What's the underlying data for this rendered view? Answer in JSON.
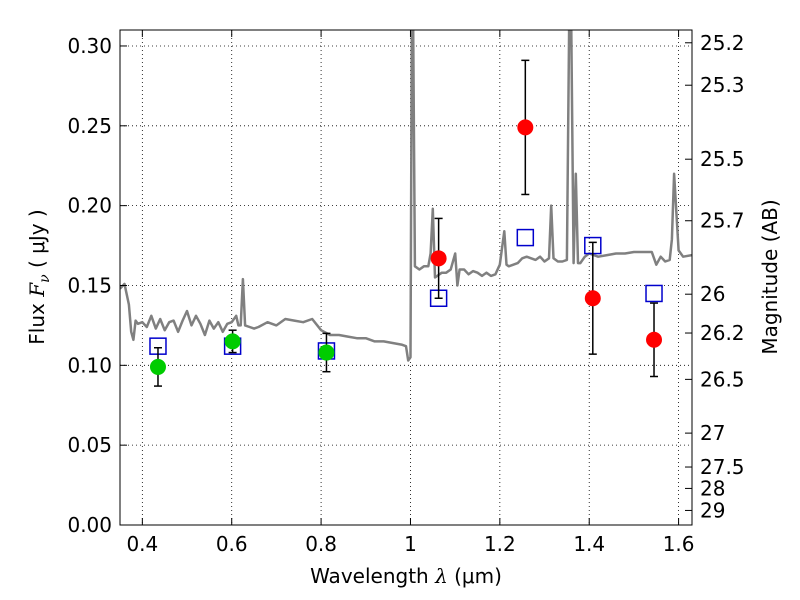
{
  "chart_data": {
    "type": "scatter",
    "xlabel": {
      "prefix": "Wavelength  ",
      "symbol": "λ",
      "unit": " (μm)"
    },
    "ylabel": {
      "prefix": "Flux  ",
      "symbol": "F",
      "sub": "ν",
      "unit": "  ( μJy )"
    },
    "y2label": "Magnitude (AB)",
    "xlim": [
      0.35,
      1.63
    ],
    "ylim": [
      0.0,
      0.31
    ],
    "grid": true,
    "x_ticks": [
      0.4,
      0.6,
      0.8,
      1.0,
      1.2,
      1.4,
      1.6
    ],
    "x_tick_labels": [
      "0.4",
      "0.6",
      "0.8",
      "1",
      "1.2",
      "1.4",
      "1.6"
    ],
    "y_ticks": [
      0.0,
      0.05,
      0.1,
      0.15,
      0.2,
      0.25,
      0.3
    ],
    "y_tick_labels": [
      "0.00",
      "0.05",
      "0.10",
      "0.15",
      "0.20",
      "0.25",
      "0.30"
    ],
    "y2_ticks": [
      {
        "label": "25.2",
        "value": 25.2
      },
      {
        "label": "25.3",
        "value": 25.3
      },
      {
        "label": "25.5",
        "value": 25.5
      },
      {
        "label": "25.7",
        "value": 25.7
      },
      {
        "label": "26",
        "value": 26.0
      },
      {
        "label": "26.2",
        "value": 26.2
      },
      {
        "label": "26.5",
        "value": 26.5
      },
      {
        "label": "27",
        "value": 27.0
      },
      {
        "label": "27.5",
        "value": 27.5
      },
      {
        "label": "28",
        "value": 28.0
      },
      {
        "label": "29",
        "value": 29.0
      }
    ],
    "series": [
      {
        "kind": "model_spectrum",
        "color": "#808080",
        "x": [
          0.35,
          0.36,
          0.37,
          0.375,
          0.38,
          0.385,
          0.39,
          0.4,
          0.41,
          0.42,
          0.43,
          0.44,
          0.45,
          0.46,
          0.47,
          0.48,
          0.49,
          0.5,
          0.51,
          0.52,
          0.53,
          0.54,
          0.55,
          0.56,
          0.57,
          0.58,
          0.59,
          0.6,
          0.61,
          0.615,
          0.62,
          0.625,
          0.63,
          0.64,
          0.65,
          0.66,
          0.68,
          0.7,
          0.72,
          0.74,
          0.76,
          0.78,
          0.8,
          0.82,
          0.84,
          0.86,
          0.88,
          0.9,
          0.92,
          0.94,
          0.96,
          0.98,
          0.99,
          0.995,
          1.0,
          1.003,
          1.006,
          1.01,
          1.02,
          1.03,
          1.04,
          1.045,
          1.05,
          1.055,
          1.06,
          1.07,
          1.08,
          1.09,
          1.1,
          1.105,
          1.11,
          1.12,
          1.13,
          1.14,
          1.15,
          1.16,
          1.17,
          1.18,
          1.19,
          1.2,
          1.21,
          1.215,
          1.22,
          1.23,
          1.24,
          1.25,
          1.26,
          1.27,
          1.28,
          1.29,
          1.3,
          1.31,
          1.315,
          1.32,
          1.33,
          1.34,
          1.35,
          1.355,
          1.36,
          1.365,
          1.37,
          1.375,
          1.38,
          1.39,
          1.4,
          1.42,
          1.44,
          1.46,
          1.48,
          1.5,
          1.52,
          1.54,
          1.55,
          1.56,
          1.57,
          1.58,
          1.585,
          1.59,
          1.6,
          1.61,
          1.63
        ],
        "y": [
          0.148,
          0.151,
          0.138,
          0.121,
          0.116,
          0.128,
          0.126,
          0.127,
          0.124,
          0.131,
          0.123,
          0.129,
          0.122,
          0.127,
          0.128,
          0.121,
          0.128,
          0.134,
          0.125,
          0.131,
          0.126,
          0.119,
          0.128,
          0.123,
          0.127,
          0.121,
          0.126,
          0.127,
          0.131,
          0.125,
          0.125,
          0.154,
          0.125,
          0.124,
          0.123,
          0.124,
          0.127,
          0.125,
          0.129,
          0.128,
          0.127,
          0.129,
          0.122,
          0.119,
          0.119,
          0.118,
          0.117,
          0.117,
          0.115,
          0.115,
          0.114,
          0.113,
          0.112,
          0.103,
          0.105,
          0.31,
          0.31,
          0.162,
          0.16,
          0.162,
          0.162,
          0.17,
          0.198,
          0.155,
          0.156,
          0.158,
          0.158,
          0.16,
          0.17,
          0.15,
          0.16,
          0.16,
          0.157,
          0.159,
          0.158,
          0.156,
          0.158,
          0.156,
          0.157,
          0.163,
          0.184,
          0.163,
          0.162,
          0.163,
          0.164,
          0.167,
          0.168,
          0.167,
          0.166,
          0.168,
          0.165,
          0.167,
          0.2,
          0.167,
          0.165,
          0.165,
          0.166,
          0.31,
          0.31,
          0.164,
          0.22,
          0.164,
          0.164,
          0.168,
          0.17,
          0.168,
          0.169,
          0.17,
          0.17,
          0.171,
          0.171,
          0.171,
          0.163,
          0.168,
          0.165,
          0.166,
          0.179,
          0.22,
          0.172,
          0.168,
          0.169
        ]
      },
      {
        "kind": "model_points",
        "marker": "open_square",
        "color": "#0000cc",
        "x": [
          0.435,
          0.602,
          0.812,
          1.063,
          1.257,
          1.408,
          1.545
        ],
        "y": [
          0.112,
          0.112,
          0.109,
          0.142,
          0.18,
          0.175,
          0.145
        ]
      },
      {
        "kind": "observed_points",
        "marker": "circle",
        "color": "#00cc00",
        "x": [
          0.435,
          0.602,
          0.812
        ],
        "y": [
          0.099,
          0.115,
          0.108
        ],
        "yerr": [
          0.012,
          0.007,
          0.012
        ]
      },
      {
        "kind": "observed_points",
        "marker": "circle",
        "color": "#ff0000",
        "x": [
          1.063,
          1.257,
          1.408,
          1.545
        ],
        "y": [
          0.167,
          0.249,
          0.142,
          0.116
        ],
        "yerr": [
          0.025,
          0.042,
          0.035,
          0.023
        ]
      }
    ]
  }
}
